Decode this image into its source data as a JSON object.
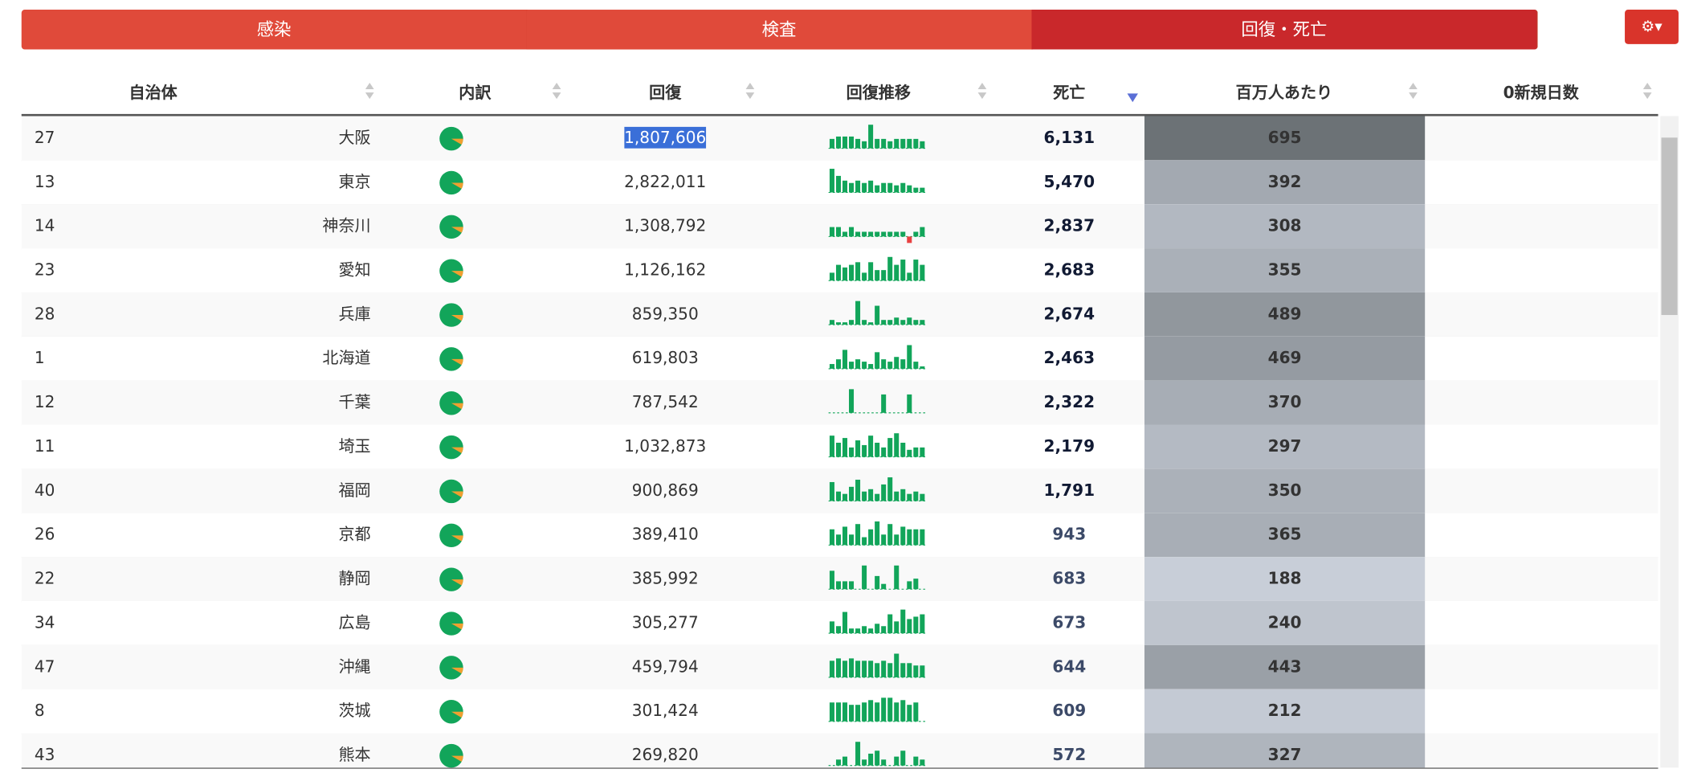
{
  "tabs": [
    "感染",
    "検査",
    "回復・死亡"
  ],
  "headers": [
    "自治体",
    "内訳",
    "回復",
    "回復推移",
    "死亡",
    "百万人あたり",
    "0新規日数"
  ],
  "rows": [
    {
      "code": 27,
      "name": "大阪",
      "recovered": "1,807,606",
      "trend": [
        4,
        5,
        5,
        5,
        4,
        3,
        10,
        4,
        4,
        3,
        4,
        4,
        4,
        4,
        3
      ],
      "deaths": "6,131",
      "per_million": 695
    },
    {
      "code": 13,
      "name": "東京",
      "recovered": "2,822,011",
      "trend": [
        10,
        7,
        5,
        4,
        5,
        4,
        5,
        3,
        4,
        4,
        3,
        4,
        3,
        2,
        2
      ],
      "deaths": "5,470",
      "per_million": 392
    },
    {
      "code": 14,
      "name": "神奈川",
      "recovered": "1,308,792",
      "trend": [
        2,
        2,
        1,
        2,
        1,
        1,
        1,
        1,
        1,
        1,
        1,
        1,
        -5,
        1,
        2
      ],
      "deaths": "2,837",
      "per_million": 308
    },
    {
      "code": 23,
      "name": "愛知",
      "recovered": "1,126,162",
      "trend": [
        3,
        6,
        5,
        6,
        7,
        3,
        7,
        4,
        4,
        9,
        6,
        8,
        3,
        8,
        6
      ],
      "deaths": "2,683",
      "per_million": 355
    },
    {
      "code": 28,
      "name": "兵庫",
      "recovered": "859,350",
      "trend": [
        2,
        1,
        1,
        2,
        10,
        2,
        1,
        8,
        2,
        2,
        3,
        2,
        3,
        2,
        2
      ],
      "deaths": "2,674",
      "per_million": 489
    },
    {
      "code": 1,
      "name": "北海道",
      "recovered": "619,803",
      "trend": [
        2,
        4,
        8,
        3,
        4,
        3,
        2,
        7,
        4,
        3,
        5,
        4,
        10,
        3,
        1
      ],
      "deaths": "2,463",
      "per_million": 469
    },
    {
      "code": 12,
      "name": "千葉",
      "recovered": "787,542",
      "trend": [
        0,
        0,
        0,
        9,
        0,
        0,
        0,
        0,
        7,
        0,
        0,
        0,
        7,
        0,
        0
      ],
      "deaths": "2,322",
      "per_million": 370
    },
    {
      "code": 11,
      "name": "埼玉",
      "recovered": "1,032,873",
      "trend": [
        9,
        6,
        8,
        4,
        7,
        5,
        9,
        6,
        4,
        8,
        10,
        6,
        3,
        4,
        4
      ],
      "deaths": "2,179",
      "per_million": 297
    },
    {
      "code": 40,
      "name": "福岡",
      "recovered": "900,869",
      "trend": [
        8,
        4,
        3,
        6,
        9,
        4,
        5,
        3,
        7,
        10,
        4,
        5,
        3,
        4,
        3
      ],
      "deaths": "1,791",
      "per_million": 350
    },
    {
      "code": 26,
      "name": "京都",
      "recovered": "389,410",
      "trend": [
        6,
        4,
        7,
        4,
        8,
        3,
        6,
        9,
        4,
        8,
        4,
        7,
        6,
        6,
        6
      ],
      "deaths": "943",
      "per_million": 365
    },
    {
      "code": 22,
      "name": "静岡",
      "recovered": "385,992",
      "trend": [
        7,
        3,
        3,
        3,
        0,
        9,
        0,
        5,
        2,
        0,
        9,
        0,
        3,
        4,
        0
      ],
      "deaths": "683",
      "per_million": 188
    },
    {
      "code": 34,
      "name": "広島",
      "recovered": "305,277",
      "trend": [
        5,
        3,
        9,
        2,
        2,
        3,
        2,
        4,
        3,
        8,
        5,
        10,
        6,
        7,
        8
      ],
      "deaths": "673",
      "per_million": 240
    },
    {
      "code": 47,
      "name": "沖縄",
      "recovered": "459,794",
      "trend": [
        7,
        8,
        7,
        8,
        7,
        7,
        7,
        6,
        7,
        6,
        10,
        6,
        6,
        5,
        5
      ],
      "deaths": "644",
      "per_million": 443
    },
    {
      "code": 8,
      "name": "茨城",
      "recovered": "301,424",
      "trend": [
        8,
        8,
        8,
        7,
        7,
        8,
        9,
        8,
        10,
        10,
        8,
        9,
        7,
        8,
        0
      ],
      "deaths": "609",
      "per_million": 212
    },
    {
      "code": 43,
      "name": "熊本",
      "recovered": "269,820",
      "trend": [
        0,
        2,
        3,
        0,
        8,
        2,
        4,
        5,
        2,
        0,
        3,
        5,
        0,
        3,
        2
      ],
      "deaths": "572",
      "per_million": 327
    }
  ]
}
